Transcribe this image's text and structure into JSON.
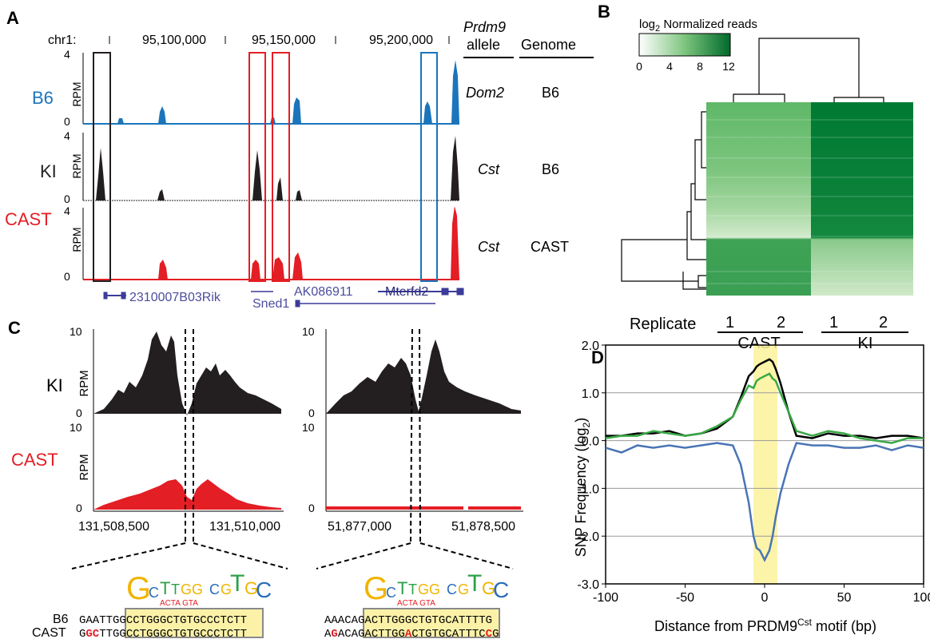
{
  "panels": {
    "A": {
      "label": "A",
      "chrom": "chr1:",
      "coords": [
        "95,100,000",
        "95,150,000",
        "95,200,000"
      ],
      "ylabel": "RPM",
      "ymax": "4",
      "ymin": "0",
      "tracks": [
        {
          "name": "B6",
          "color": "#1b75bc",
          "allele": "Dom2",
          "genome": "B6"
        },
        {
          "name": "KI",
          "color": "#231f20",
          "allele": "Cst",
          "genome": "B6"
        },
        {
          "name": "CAST",
          "color": "#e31e24",
          "allele": "Cst",
          "genome": "CAST"
        }
      ],
      "header_allele_1": "Prdm9",
      "header_allele_2": "allele",
      "header_genome": "Genome",
      "genes": [
        "2310007B03Rik",
        "AK086911",
        "Mterfd2",
        "Sned1"
      ]
    },
    "B": {
      "label": "B",
      "colorbar_title": "log",
      "colorbar_sub": "2",
      "colorbar_rest": " Normalized reads",
      "colorbar_ticks": [
        "0",
        "4",
        "8",
        "12"
      ],
      "replicate_label": "Replicate",
      "replicates": [
        "1",
        "2",
        "1",
        "2"
      ],
      "groups": [
        "CAST",
        "KI"
      ]
    },
    "C": {
      "label": "C",
      "ylabel": "RPM",
      "ytick_top": "10",
      "ytick_bottom": "0",
      "tracks": [
        "KI",
        "CAST"
      ],
      "left_coords": [
        "131,508,500",
        "131,510,000"
      ],
      "right_coords": [
        "51,877,000",
        "51,878,500"
      ],
      "seq_names": [
        "B6",
        "CAST"
      ],
      "left_seqs": {
        "b6": [
          "GAATT",
          "GGCCTGGGCTGTGCC",
          "CTCTT"
        ],
        "cast": [
          "G",
          "GC",
          "TT",
          "GGCCTGGGCTGTGCC",
          "CTCTT"
        ]
      },
      "right_seqs": {
        "b6": [
          "AAACA",
          "GACTTGGGCTGTGCA",
          "TTTTG"
        ],
        "cast": [
          "A",
          "G",
          "ACA",
          "GACTTGG",
          "A",
          "CTGTGCA",
          "TTTC",
          "C",
          "G"
        ]
      }
    },
    "D": {
      "label": "D",
      "ylabel_main": "SNP Frequency  (log",
      "ylabel_sub": "2",
      "ylabel_end": ")",
      "xlabel_main": "Distance from PRDM9",
      "xlabel_sup": "Cst",
      "xlabel_end": " motif (bp)",
      "yticks": [
        "2.0",
        "1.0",
        "0.0",
        "-1.0",
        "-2.0",
        "-3.0"
      ],
      "xticks": [
        "-100",
        "-50",
        "0",
        "50",
        "100"
      ]
    }
  },
  "chart_data": {
    "type": "line",
    "x": [
      -100,
      -90,
      -80,
      -70,
      -60,
      -50,
      -40,
      -30,
      -20,
      -15,
      -10,
      -7,
      -5,
      -3,
      0,
      3,
      5,
      7,
      10,
      15,
      20,
      30,
      40,
      50,
      60,
      70,
      80,
      90,
      100
    ],
    "xlim": [
      -100,
      100
    ],
    "ylim": [
      -3.0,
      2.0
    ],
    "grid": true,
    "highlight_x": [
      -7,
      8
    ],
    "series": [
      {
        "color": "#000000",
        "values": [
          0.1,
          0.1,
          0.15,
          0.15,
          0.2,
          0.1,
          0.15,
          0.25,
          0.5,
          0.9,
          1.35,
          1.45,
          1.55,
          1.6,
          1.65,
          1.7,
          1.65,
          1.5,
          1.2,
          0.6,
          0.1,
          0.05,
          0.15,
          0.1,
          0.1,
          0.05,
          0.1,
          0.1,
          0.05
        ]
      },
      {
        "color": "#39a845",
        "values": [
          0.05,
          0.1,
          0.1,
          0.2,
          0.15,
          0.1,
          0.15,
          0.3,
          0.5,
          0.85,
          1.15,
          1.1,
          1.25,
          1.3,
          1.35,
          1.4,
          1.3,
          1.25,
          1.0,
          0.6,
          0.2,
          0.1,
          0.2,
          0.15,
          0.05,
          0.0,
          -0.05,
          0.05,
          0.05
        ]
      },
      {
        "color": "#4a74b4",
        "values": [
          -0.15,
          -0.25,
          -0.1,
          -0.15,
          -0.1,
          -0.15,
          -0.1,
          -0.05,
          -0.1,
          -0.5,
          -1.3,
          -2.0,
          -2.25,
          -2.3,
          -2.5,
          -2.3,
          -2.0,
          -1.6,
          -1.1,
          -0.5,
          -0.05,
          -0.1,
          -0.1,
          -0.15,
          -0.15,
          -0.1,
          -0.2,
          -0.1,
          -0.15
        ]
      }
    ]
  }
}
